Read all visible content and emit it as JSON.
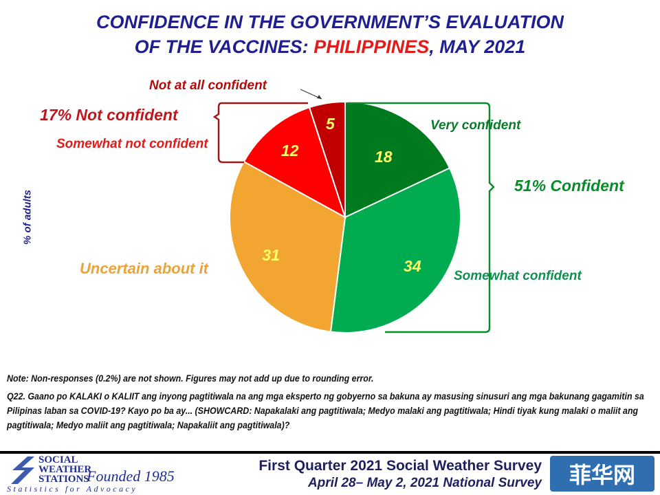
{
  "chart_data": {
    "type": "pie",
    "title_line1": "CONFIDENCE IN THE GOVERNMENT’S EVALUATION",
    "title_line2_pre": "OF THE VACCINES: ",
    "title_line2_red": "PHILIPPINES",
    "title_line2_post": ", MAY 2021",
    "ylabel": "% of adults",
    "slices": [
      {
        "label": "Very confident",
        "value": 18,
        "color": "#007a1f",
        "label_color": "#0a7a2a"
      },
      {
        "label": "Somewhat confident",
        "value": 34,
        "color": "#00ac4f",
        "label_color": "#0f8f50"
      },
      {
        "label": "Uncertain about it",
        "value": 31,
        "color": "#f2a531",
        "label_color": "#e8a33a"
      },
      {
        "label": "Somewhat not confident",
        "value": 12,
        "color": "#ff0000",
        "label_color": "#e31b1b"
      },
      {
        "label": "Not at all confident",
        "value": 5,
        "color": "#c00000",
        "label_color": "#b00d0d"
      }
    ],
    "value_label_color": "#ffff66",
    "groups": {
      "confident": {
        "label": "51% Confident",
        "color": "#0a8a2a"
      },
      "not_confident": {
        "label": "17% Not confident",
        "color": "#c0161b"
      }
    }
  },
  "notes": {
    "note": "Note: Non-responses (0.2%) are not shown. Figures may not add up due to rounding error.",
    "question": "Q22. Gaano po KALAKI o KALIIT ang inyong pagtitiwala na ang mga eksperto ng gobyerno sa bakuna ay masusing sinusuri ang mga bakunang gagamitin sa Pilipinas laban sa COVID-19? Kayo po ba ay... (SHOWCARD: Napakalaki ang pagtitiwala; Medyo malaki ang pagtitiwala; Hindi tiyak kung malaki o maliit ang pagtitiwala; Medyo maliit ang pagtitiwala; Napakaliit ang pagtitiwala)?"
  },
  "footer": {
    "logo_line1": "SOCIAL",
    "logo_line2": "WEATHER",
    "logo_line3": "STATIONS",
    "founded": "Founded 1985",
    "tagline": "Statistics for Advocacy",
    "survey": "First Quarter 2021 Social Weather Survey",
    "dates": "April 28– May 2, 2021 National Survey",
    "watermark": "菲华网"
  }
}
